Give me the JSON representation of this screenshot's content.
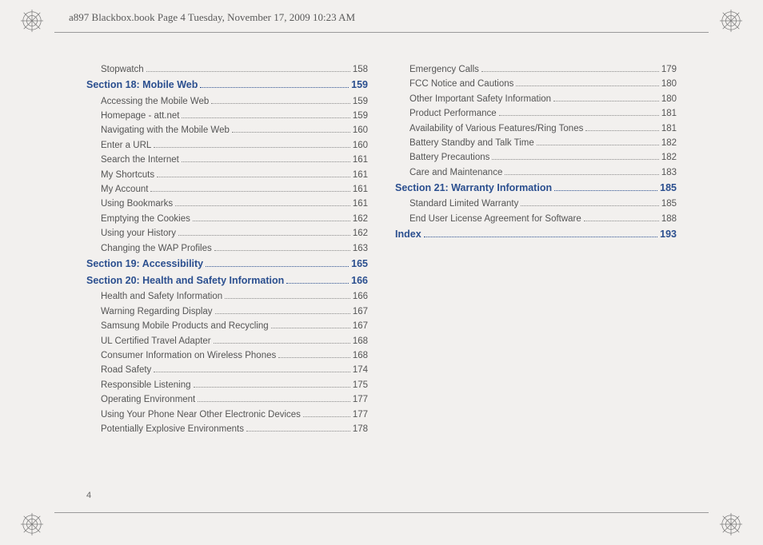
{
  "header": "a897 Blackbox.book  Page 4  Tuesday, November 17, 2009  10:23 AM",
  "page_number": "4",
  "toc": [
    {
      "type": "entry",
      "label": "Stopwatch",
      "page": "158"
    },
    {
      "type": "section",
      "label": "Section 18:  Mobile Web",
      "page": "159"
    },
    {
      "type": "entry",
      "label": "Accessing the Mobile Web",
      "page": "159"
    },
    {
      "type": "entry",
      "label": "Homepage - att.net",
      "page": "159"
    },
    {
      "type": "entry",
      "label": "Navigating with the Mobile Web",
      "page": "160"
    },
    {
      "type": "entry",
      "label": "Enter a URL",
      "page": "160"
    },
    {
      "type": "entry",
      "label": "Search the Internet",
      "page": "161"
    },
    {
      "type": "entry",
      "label": "My Shortcuts",
      "page": "161"
    },
    {
      "type": "entry",
      "label": "My Account",
      "page": "161"
    },
    {
      "type": "entry",
      "label": "Using Bookmarks",
      "page": "161"
    },
    {
      "type": "entry",
      "label": "Emptying the Cookies",
      "page": "162"
    },
    {
      "type": "entry",
      "label": "Using your History",
      "page": "162"
    },
    {
      "type": "entry",
      "label": "Changing the WAP Profiles",
      "page": "163"
    },
    {
      "type": "section",
      "label": "Section 19:  Accessibility",
      "page": "165"
    },
    {
      "type": "section",
      "label": "Section 20:  Health and Safety Information",
      "page": "166"
    },
    {
      "type": "entry",
      "label": "Health and Safety Information",
      "page": "166"
    },
    {
      "type": "entry",
      "label": "Warning Regarding Display",
      "page": "167"
    },
    {
      "type": "entry",
      "label": "Samsung Mobile Products and Recycling",
      "page": "167"
    },
    {
      "type": "entry",
      "label": "UL Certified Travel Adapter",
      "page": "168"
    },
    {
      "type": "entry",
      "label": "Consumer Information on Wireless Phones",
      "page": "168"
    },
    {
      "type": "entry",
      "label": "Road Safety",
      "page": "174"
    },
    {
      "type": "entry",
      "label": "Responsible Listening",
      "page": "175"
    },
    {
      "type": "entry",
      "label": "Operating Environment",
      "page": "177"
    },
    {
      "type": "entry",
      "label": "Using Your Phone Near Other Electronic Devices",
      "page": "177"
    },
    {
      "type": "entry",
      "label": "Potentially Explosive Environments",
      "page": "178"
    },
    {
      "type": "entry",
      "label": "Emergency Calls",
      "page": "179"
    },
    {
      "type": "entry",
      "label": "FCC Notice and Cautions",
      "page": "180"
    },
    {
      "type": "entry",
      "label": "Other Important Safety Information",
      "page": "180"
    },
    {
      "type": "entry",
      "label": "Product Performance",
      "page": "181"
    },
    {
      "type": "entry",
      "label": "Availability of Various Features/Ring Tones",
      "page": "181"
    },
    {
      "type": "entry",
      "label": "Battery Standby and Talk Time",
      "page": "182"
    },
    {
      "type": "entry",
      "label": "Battery Precautions",
      "page": "182"
    },
    {
      "type": "entry",
      "label": "Care and Maintenance",
      "page": "183"
    },
    {
      "type": "section",
      "label": "Section 21:  Warranty Information",
      "page": "185"
    },
    {
      "type": "entry",
      "label": "Standard Limited Warranty",
      "page": "185"
    },
    {
      "type": "entry",
      "label": "End User License Agreement for Software",
      "page": "188"
    },
    {
      "type": "section",
      "label": "Index",
      "page": "193"
    }
  ]
}
